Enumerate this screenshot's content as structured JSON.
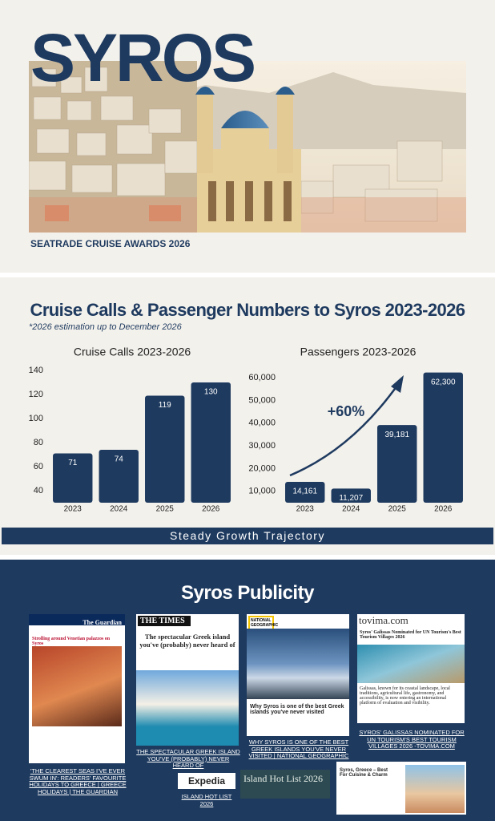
{
  "header": {
    "title": "SYROS",
    "subtitle": "SEATRADE CRUISE AWARDS 2026"
  },
  "stats": {
    "title": "Cruise Calls & Passenger Numbers to Syros  2023-2026",
    "note": "*2026 estimation up to December 2026",
    "banner": "Steady Growth Trajectory"
  },
  "chart_data": [
    {
      "type": "bar",
      "title": "Cruise Calls 2023-2026",
      "categories": [
        "2023",
        "2024",
        "2025",
        "2026"
      ],
      "values": [
        71,
        74,
        119,
        130
      ],
      "color": "#1e3a5f",
      "ylim": [
        30,
        140
      ],
      "yticks": [
        40,
        60,
        80,
        100,
        120,
        140
      ],
      "grid": false
    },
    {
      "type": "bar",
      "title": "Passengers 2023-2026",
      "categories": [
        "2023",
        "2024",
        "2025",
        "2026"
      ],
      "values": [
        14161,
        11207,
        39181,
        62300
      ],
      "value_labels": [
        "14,161",
        "11,207",
        "39,181",
        "62,300"
      ],
      "color": "#1e3a5f",
      "ylim": [
        5000,
        65000
      ],
      "yticks": [
        {
          "value": 10000,
          "label": "10,000"
        },
        {
          "value": 20000,
          "label": "20,000"
        },
        {
          "value": 30000,
          "label": "30,000"
        },
        {
          "value": 40000,
          "label": "40,000"
        },
        {
          "value": 50000,
          "label": "50,000"
        },
        {
          "value": 60000,
          "label": "60,000"
        }
      ],
      "grid": false,
      "annotation": "+60%"
    }
  ],
  "publicity": {
    "title": "Syros Publicity",
    "cards": [
      {
        "logo": "The Guardian",
        "headline": "Strolling around Venetian palazzos on Syros",
        "link": "'THE CLEAREST SEAS I'VE EVER SWUM IN': READERS' FAVOURITE HOLIDAYS TO GREECE | GREECE HOLIDAYS | THE GUARDIAN"
      },
      {
        "logo": "THE TIMES",
        "headline": "The spectacular Greek island you've (probably) never heard of",
        "link": "THE SPECTACULAR GREEK ISLAND YOU'VE (PROBABLY) NEVER HEARD OF"
      },
      {
        "logo": "NATIONAL GEOGRAPHIC",
        "headline": "Why Syros is one of the best Greek islands you've never visited",
        "link": "WHY SYROS IS ONE OF THE BEST GREEK ISLANDS YOU'VE NEVER VISITED | NATIONAL GEOGRAPHIC"
      },
      {
        "logo": "tovima.com",
        "headline": "Syros' Galissas Nominated for UN Tourism's Best Tourism Villages 2026",
        "body": "Galissas, known for its coastal landscape, local traditions, agricultural life, gastronomy, and accessibility, is now entering an international platform of evaluation and visibility.",
        "link": "SYROS' GALISSAS NOMINATED FOR UN TOURISM'S BEST TOURISM VILLAGES 2026 -TOVIMA.COM"
      },
      {
        "logo": "Expedia",
        "headline": "Island Hot List 2026",
        "link": "ISLAND HOT LIST 2026"
      },
      {
        "headline": "Syros, Greece – Best For Cuisine & Charm"
      }
    ]
  }
}
